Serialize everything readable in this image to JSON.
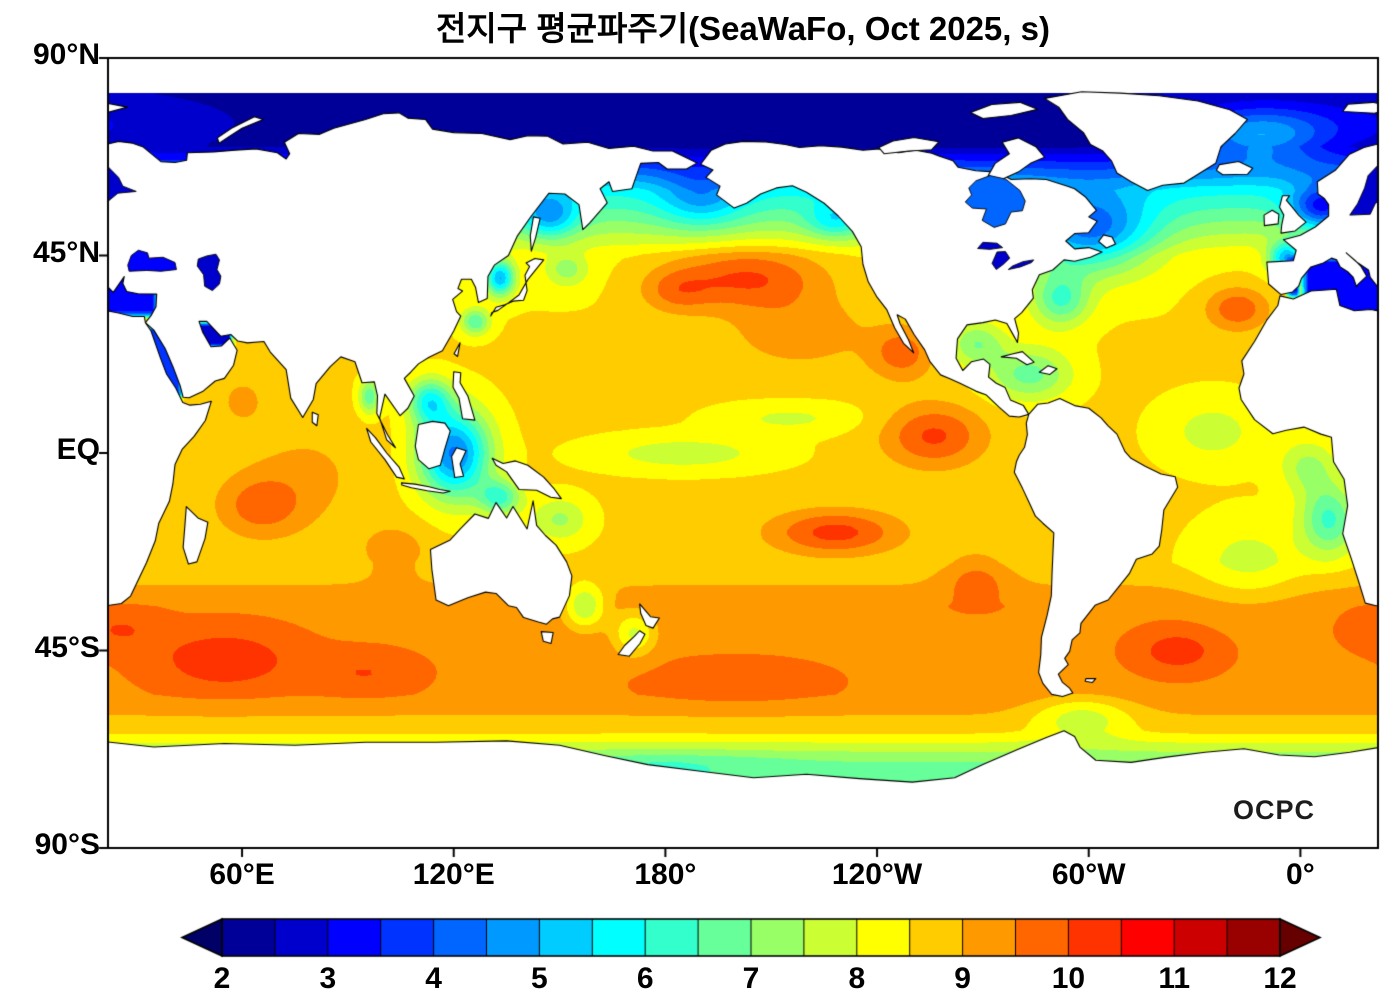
{
  "title": "전지구 평균파주기(SeaWaFo, Oct 2025, s)",
  "watermark": "OCPC",
  "axes": {
    "y_ticks": [
      "90°N",
      "45°N",
      "EQ",
      "45°S",
      "90°S"
    ],
    "y_lats": [
      90,
      45,
      0,
      -45,
      -90
    ],
    "x_ticks": [
      "60°E",
      "120°E",
      "180°",
      "120°W",
      "60°W",
      "0°"
    ],
    "x_lons_display": [
      60,
      120,
      180,
      240,
      300,
      360
    ]
  },
  "colorbar": {
    "min": 2,
    "max": 12,
    "step": 0.5,
    "extend": "both",
    "colormap": "jet",
    "tick_labels": [
      "2",
      "3",
      "4",
      "5",
      "6",
      "7",
      "8",
      "9",
      "10",
      "11",
      "12"
    ],
    "under_color": "#000066",
    "over_color": "#660000",
    "segment_colors": [
      "#000099",
      "#0000cc",
      "#0000ff",
      "#0033ff",
      "#0066ff",
      "#0099ff",
      "#00ccff",
      "#00ffff",
      "#33ffcc",
      "#66ff99",
      "#99ff66",
      "#ccff33",
      "#ffff00",
      "#ffcc00",
      "#ff9900",
      "#ff6600",
      "#ff3300",
      "#ff0000",
      "#cc0000",
      "#990000"
    ]
  },
  "chart_data": {
    "type": "heatmap",
    "title": "전지구 평균파주기(SeaWaFo, Oct 2025, s)",
    "variable": "global mean wave period",
    "units": "s",
    "source_label": "SeaWaFo",
    "time_label": "Oct 2025",
    "watermark": "OCPC",
    "lat_ticks": [
      "90°N",
      "45°N",
      "EQ",
      "45°S",
      "90°S"
    ],
    "lon_ticks": [
      "60°E",
      "120°E",
      "180°",
      "120°W",
      "60°W",
      "0°"
    ],
    "projection": "equirectangular, Pacific-centered (left edge ≈ 22°E)",
    "scale_range_s": [
      2,
      12
    ],
    "scale_step_s": 0.5,
    "colormap": "jet, extended arrows both ends",
    "land_color": "white with black coastlines",
    "regions": [
      {
        "name": "Arctic Ocean",
        "approx_period_s": 2.5
      },
      {
        "name": "North Pacific storm maximum (40N, 155W)",
        "approx_period_s": 10.5
      },
      {
        "name": "Eastern tropical Pacific (5N, 105W)",
        "approx_period_s": 10.5
      },
      {
        "name": "Baja California coast (25N, 115W)",
        "approx_period_s": 10
      },
      {
        "name": "South-central Pacific swell band (18S, 130W)",
        "approx_period_s": 10.5
      },
      {
        "name": "Western tropical Pacific (10N, 140E)",
        "approx_period_s": 8
      },
      {
        "name": "Indonesian seas",
        "approx_period_s": 4.5
      },
      {
        "name": "South China Sea",
        "approx_period_s": 6
      },
      {
        "name": "Bay of Bengal",
        "approx_period_s": 8.5
      },
      {
        "name": "Arabian Sea",
        "approx_period_s": 9
      },
      {
        "name": "Tropical Indian Ocean (12S, 65E)",
        "approx_period_s": 10
      },
      {
        "name": "Southern Indian Ocean (47S, 55E)",
        "approx_period_s": 10.5
      },
      {
        "name": "Southern Ocean (50S belt)",
        "approx_period_s": 9.5
      },
      {
        "name": "Antarctic coastal band",
        "approx_period_s": 7.5
      },
      {
        "name": "South Atlantic (30S, 15W)",
        "approx_period_s": 8.5
      },
      {
        "name": "Benguela coast (Namibia)",
        "approx_period_s": 6.5
      },
      {
        "name": "North Atlantic subtropics (25N, 40W)",
        "approx_period_s": 8.5
      },
      {
        "name": "Northeast Atlantic off Morocco (33N, 18W)",
        "approx_period_s": 9.5
      },
      {
        "name": "Labrador Sea / NW Atlantic (50N, 50W)",
        "approx_period_s": 5
      },
      {
        "name": "Caribbean Sea",
        "approx_period_s": 7
      },
      {
        "name": "Gulf of Mexico",
        "approx_period_s": 7
      },
      {
        "name": "Gulf of Alaska",
        "approx_period_s": 7
      },
      {
        "name": "Mediterranean Sea",
        "approx_period_s": 3.5
      },
      {
        "name": "Black Sea",
        "approx_period_s": 3
      },
      {
        "name": "Caspian Sea",
        "approx_period_s": 3
      },
      {
        "name": "Red Sea",
        "approx_period_s": 3.5
      },
      {
        "name": "Persian Gulf",
        "approx_period_s": 3
      },
      {
        "name": "Hudson Bay",
        "approx_period_s": 4.5
      },
      {
        "name": "Baltic Sea",
        "approx_period_s": 3
      },
      {
        "name": "North Sea",
        "approx_period_s": 4.5
      },
      {
        "name": "Sea of Okhotsk",
        "approx_period_s": 4.5
      },
      {
        "name": "Bering Sea",
        "approx_period_s": 5
      },
      {
        "name": "Sea of Japan",
        "approx_period_s": 5
      },
      {
        "name": "Tasman Sea",
        "approx_period_s": 7.5
      }
    ]
  }
}
